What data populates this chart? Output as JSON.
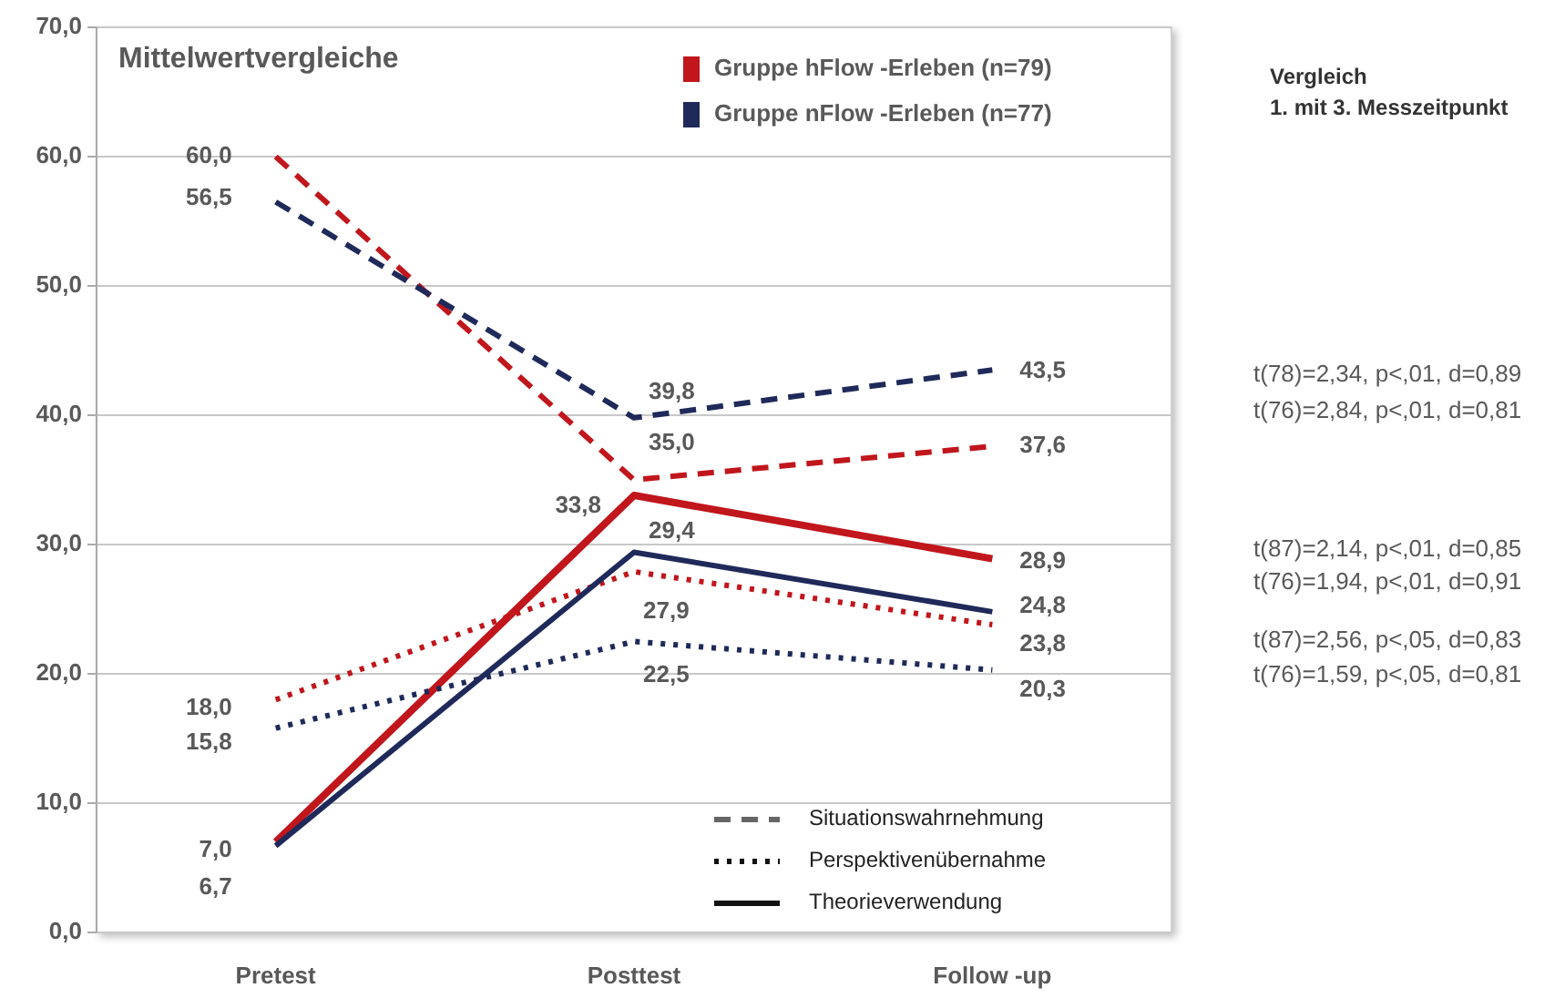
{
  "chart_data": {
    "type": "line",
    "title": "Mittelwertvergleiche",
    "categories": [
      "Pretest",
      "Posttest",
      "Follow -up"
    ],
    "series": [
      {
        "color": "#c0161c",
        "line_style": "dashed",
        "values": [
          60.0,
          35.0,
          37.6
        ],
        "value_labels": [
          "60,0",
          "35,0",
          "37,6"
        ]
      },
      {
        "color": "#c0161c",
        "line_style": "dotted",
        "values": [
          18.0,
          27.9,
          23.8
        ],
        "value_labels": [
          "18,0",
          "27,9",
          "23,8"
        ]
      },
      {
        "color": "#c0161c",
        "line_style": "solid",
        "values": [
          7.0,
          33.8,
          28.9
        ],
        "value_labels": [
          "7,0",
          "33,8",
          "28,9"
        ]
      },
      {
        "color": "#1f2a5a",
        "line_style": "dashed",
        "values": [
          56.5,
          39.8,
          43.5
        ],
        "value_labels": [
          "56,5",
          "39,8",
          "43,5"
        ]
      },
      {
        "color": "#1f2a5a",
        "line_style": "dotted",
        "values": [
          15.8,
          22.5,
          20.3
        ],
        "value_labels": [
          "15,8",
          "22,5",
          "20,3"
        ]
      },
      {
        "color": "#1f2a5a",
        "line_style": "solid",
        "values": [
          6.7,
          29.4,
          24.8
        ],
        "value_labels": [
          "6,7",
          "29,4",
          "24,8"
        ]
      }
    ],
    "ylim": [
      0,
      70
    ],
    "yticks": [
      {
        "value": 0,
        "label": "0,0"
      },
      {
        "value": 10,
        "label": "10,0"
      },
      {
        "value": 20,
        "label": "20,0"
      },
      {
        "value": 30,
        "label": "30,0"
      },
      {
        "value": 40,
        "label": "40,0"
      },
      {
        "value": 50,
        "label": "50,0"
      },
      {
        "value": 60,
        "label": "60,0"
      },
      {
        "value": 70,
        "label": "70,0"
      }
    ],
    "grid": "y",
    "marker": "none",
    "annotations": [
      "Vergleich",
      "1. mit 3. Messzeitpunkt",
      "Gruppe  hFlow -Erleben (n=79)",
      "Gruppe  nFlow -Erleben (n=77)",
      "Situationswahrnehmung",
      "Perspektivenübernahme",
      "Theorieverwendung",
      "t(78)=2,34, p<,01, d=0,89",
      "t(76)=2,84, p<,01, d=0,81",
      "t(87)=2,14, p<,01, d=0,85",
      "t(76)=1,94, p<,01, d=0,91",
      "t(87)=2,56, p<,05, d=0,83",
      "t(76)=1,59, p<,05, d=0,81"
    ]
  }
}
